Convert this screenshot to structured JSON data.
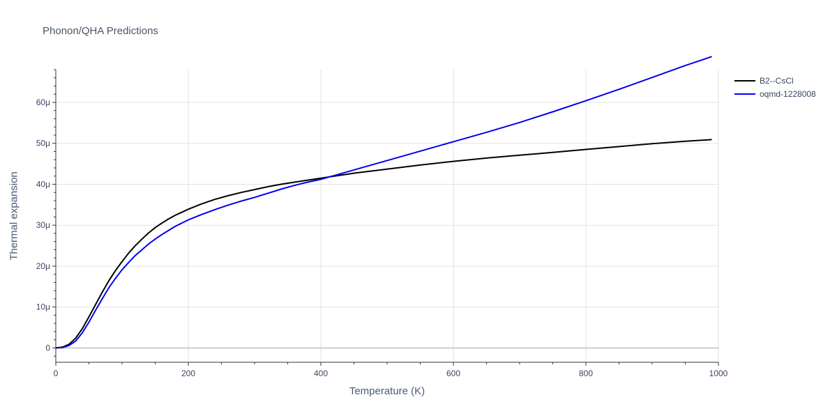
{
  "chart_data": {
    "type": "line",
    "title": "Phonon/QHA Predictions",
    "xlabel": "Temperature (K)",
    "ylabel": "Thermal expansion",
    "xlim": [
      0,
      1000
    ],
    "ylim": [
      -3.5e-06,
      6.8e-05
    ],
    "x_ticks": [
      {
        "value": 0,
        "label": "0"
      },
      {
        "value": 200,
        "label": "200"
      },
      {
        "value": 400,
        "label": "400"
      },
      {
        "value": 600,
        "label": "600"
      },
      {
        "value": 800,
        "label": "800"
      },
      {
        "value": 1000,
        "label": "1000"
      }
    ],
    "y_ticks": [
      {
        "value": 0,
        "label": "0"
      },
      {
        "value": 1e-05,
        "label": "10μ"
      },
      {
        "value": 2e-05,
        "label": "20μ"
      },
      {
        "value": 3e-05,
        "label": "30μ"
      },
      {
        "value": 4e-05,
        "label": "40μ"
      },
      {
        "value": 5e-05,
        "label": "50μ"
      },
      {
        "value": 6e-05,
        "label": "60μ"
      }
    ],
    "grid": true,
    "legend_position": "top-right",
    "series": [
      {
        "name": "B2--CsCl",
        "color": "#000000",
        "x": [
          0,
          10,
          20,
          30,
          40,
          50,
          60,
          70,
          80,
          90,
          100,
          110,
          120,
          130,
          140,
          150,
          160,
          170,
          180,
          200,
          220,
          240,
          260,
          280,
          300,
          320,
          340,
          360,
          380,
          400,
          450,
          500,
          550,
          600,
          650,
          700,
          750,
          800,
          850,
          900,
          950,
          990
        ],
        "y": [
          0,
          2e-07,
          9e-07,
          2.4e-06,
          4.7e-06,
          7.6e-06,
          1.06e-05,
          1.36e-05,
          1.64e-05,
          1.89e-05,
          2.11e-05,
          2.32e-05,
          2.5e-05,
          2.66e-05,
          2.81e-05,
          2.94e-05,
          3.05e-05,
          3.15e-05,
          3.24e-05,
          3.39e-05,
          3.52e-05,
          3.63e-05,
          3.72e-05,
          3.8e-05,
          3.87e-05,
          3.94e-05,
          4e-05,
          4.05e-05,
          4.1e-05,
          4.15e-05,
          4.27e-05,
          4.37e-05,
          4.47e-05,
          4.56e-05,
          4.64e-05,
          4.71e-05,
          4.78e-05,
          4.85e-05,
          4.92e-05,
          4.99e-05,
          5.05e-05,
          5.09e-05
        ]
      },
      {
        "name": "oqmd-1228008",
        "color": "#0000ee",
        "x": [
          0,
          10,
          20,
          30,
          40,
          50,
          60,
          70,
          80,
          90,
          100,
          110,
          120,
          130,
          140,
          150,
          160,
          170,
          180,
          200,
          220,
          240,
          260,
          280,
          300,
          320,
          340,
          360,
          380,
          400,
          450,
          500,
          550,
          600,
          650,
          700,
          750,
          800,
          850,
          900,
          950,
          990
        ],
        "y": [
          0,
          1e-07,
          6e-07,
          1.7e-06,
          3.7e-06,
          6.3e-06,
          9.2e-06,
          1.2e-05,
          1.47e-05,
          1.7e-05,
          1.91e-05,
          2.09e-05,
          2.26e-05,
          2.4e-05,
          2.54e-05,
          2.66e-05,
          2.77e-05,
          2.87e-05,
          2.97e-05,
          3.13e-05,
          3.26e-05,
          3.38e-05,
          3.49e-05,
          3.59e-05,
          3.68e-05,
          3.78e-05,
          3.88e-05,
          3.97e-05,
          4.05e-05,
          4.12e-05,
          4.35e-05,
          4.58e-05,
          4.81e-05,
          5.04e-05,
          5.27e-05,
          5.51e-05,
          5.77e-05,
          6.04e-05,
          6.32e-05,
          6.61e-05,
          6.9e-05,
          7.12e-05
        ]
      }
    ]
  }
}
